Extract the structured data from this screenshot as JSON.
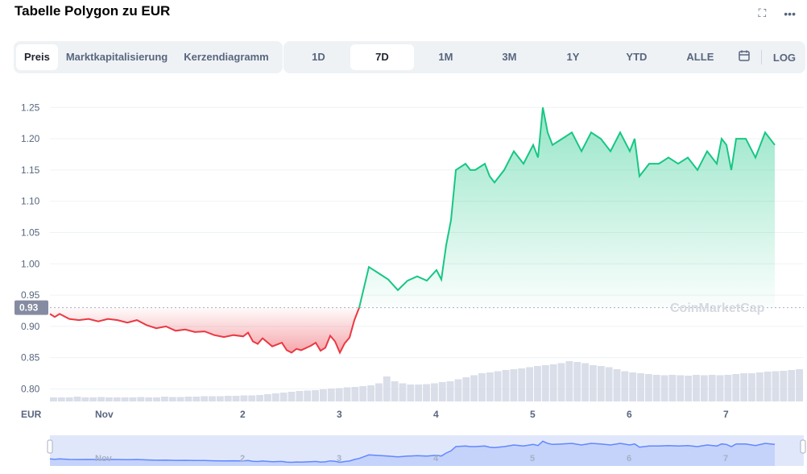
{
  "header": {
    "title": "Tabelle Polygon zu EUR",
    "fullscreen_icon": "expand-icon",
    "more_icon": "more-icon"
  },
  "view_tabs": [
    {
      "label": "Preis",
      "active": true
    },
    {
      "label": "Marktkapitalisierung",
      "active": false
    },
    {
      "label": "Kerzendiagramm",
      "active": false
    }
  ],
  "range_tabs": [
    {
      "label": "1D",
      "active": false
    },
    {
      "label": "7D",
      "active": true
    },
    {
      "label": "1M",
      "active": false
    },
    {
      "label": "3M",
      "active": false
    },
    {
      "label": "1Y",
      "active": false
    },
    {
      "label": "YTD",
      "active": false
    },
    {
      "label": "ALLE",
      "active": false
    }
  ],
  "log_label": "LOG",
  "watermark": "CoinMarketCap",
  "chart_data": {
    "type": "area",
    "currency_label": "EUR",
    "reference_price": "0.93",
    "ylim": [
      0.78,
      1.28
    ],
    "yticks": [
      "1.25",
      "1.20",
      "1.15",
      "1.10",
      "1.05",
      "1.00",
      "0.95",
      "0.90",
      "0.85",
      "0.80"
    ],
    "xticks": [
      "Nov",
      "2",
      "3",
      "4",
      "5",
      "6",
      "7"
    ],
    "x_range": [
      0,
      7.8
    ],
    "colors": {
      "down": "#ea3943",
      "up": "#16c784",
      "nav": "#6188ff"
    },
    "x": [
      0.0,
      0.05,
      0.1,
      0.2,
      0.3,
      0.4,
      0.5,
      0.6,
      0.7,
      0.8,
      0.9,
      1.0,
      1.1,
      1.2,
      1.3,
      1.4,
      1.5,
      1.6,
      1.7,
      1.8,
      1.9,
      2.0,
      2.05,
      2.1,
      2.15,
      2.2,
      2.3,
      2.4,
      2.45,
      2.5,
      2.55,
      2.6,
      2.7,
      2.75,
      2.8,
      2.85,
      2.9,
      2.95,
      3.0,
      3.05,
      3.1,
      3.15,
      3.2,
      3.3,
      3.4,
      3.5,
      3.6,
      3.7,
      3.8,
      3.9,
      4.0,
      4.05,
      4.1,
      4.15,
      4.2,
      4.3,
      4.35,
      4.4,
      4.5,
      4.55,
      4.6,
      4.7,
      4.8,
      4.9,
      5.0,
      5.05,
      5.1,
      5.15,
      5.2,
      5.3,
      5.4,
      5.5,
      5.6,
      5.7,
      5.8,
      5.9,
      6.0,
      6.05,
      6.1,
      6.2,
      6.3,
      6.4,
      6.5,
      6.6,
      6.7,
      6.8,
      6.9,
      6.95,
      7.0,
      7.05,
      7.1,
      7.2,
      7.3,
      7.4,
      7.5
    ],
    "y": [
      0.92,
      0.915,
      0.92,
      0.912,
      0.91,
      0.912,
      0.908,
      0.912,
      0.91,
      0.906,
      0.91,
      0.902,
      0.897,
      0.9,
      0.893,
      0.895,
      0.891,
      0.892,
      0.886,
      0.883,
      0.886,
      0.884,
      0.89,
      0.876,
      0.872,
      0.881,
      0.868,
      0.874,
      0.862,
      0.858,
      0.864,
      0.862,
      0.869,
      0.874,
      0.861,
      0.866,
      0.885,
      0.876,
      0.858,
      0.873,
      0.882,
      0.91,
      0.93,
      0.995,
      0.985,
      0.975,
      0.958,
      0.973,
      0.98,
      0.973,
      0.99,
      0.975,
      1.03,
      1.07,
      1.15,
      1.16,
      1.15,
      1.15,
      1.16,
      1.14,
      1.13,
      1.15,
      1.18,
      1.16,
      1.19,
      1.17,
      1.25,
      1.21,
      1.19,
      1.2,
      1.21,
      1.18,
      1.21,
      1.2,
      1.18,
      1.21,
      1.18,
      1.2,
      1.14,
      1.16,
      1.16,
      1.17,
      1.16,
      1.17,
      1.15,
      1.18,
      1.16,
      1.2,
      1.19,
      1.15,
      1.2,
      1.2,
      1.17,
      1.21,
      1.19
    ],
    "volume": [
      0.1,
      0.1,
      0.1,
      0.12,
      0.1,
      0.1,
      0.11,
      0.1,
      0.1,
      0.1,
      0.1,
      0.11,
      0.1,
      0.1,
      0.12,
      0.11,
      0.11,
      0.12,
      0.12,
      0.13,
      0.13,
      0.13,
      0.14,
      0.14,
      0.15,
      0.15,
      0.16,
      0.18,
      0.2,
      0.22,
      0.24,
      0.26,
      0.27,
      0.28,
      0.3,
      0.32,
      0.33,
      0.35,
      0.36,
      0.38,
      0.4,
      0.45,
      0.62,
      0.5,
      0.45,
      0.42,
      0.42,
      0.43,
      0.45,
      0.48,
      0.5,
      0.55,
      0.6,
      0.65,
      0.7,
      0.72,
      0.75,
      0.78,
      0.8,
      0.82,
      0.85,
      0.88,
      0.9,
      0.92,
      0.95,
      1.0,
      0.98,
      0.95,
      0.9,
      0.88,
      0.85,
      0.8,
      0.75,
      0.72,
      0.7,
      0.68,
      0.66,
      0.65,
      0.66,
      0.65,
      0.64,
      0.66,
      0.65,
      0.66,
      0.65,
      0.66,
      0.68,
      0.7,
      0.7,
      0.72,
      0.74,
      0.75,
      0.76,
      0.78,
      0.8
    ]
  }
}
